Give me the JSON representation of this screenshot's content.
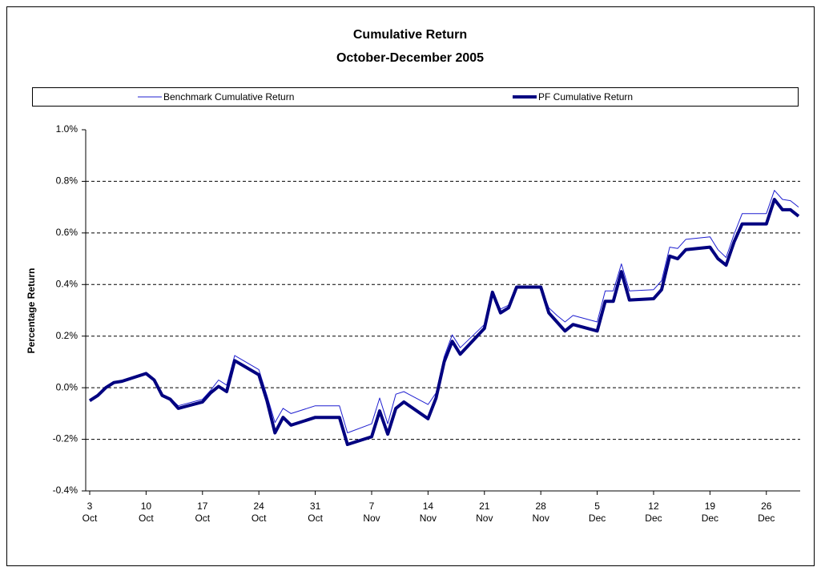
{
  "chart_data": {
    "type": "line",
    "title": "Cumulative Return",
    "subtitle": "October-December 2005",
    "y_label": "Percentage Return",
    "x": [
      "10-03",
      "10-04",
      "10-05",
      "10-06",
      "10-07",
      "10-10",
      "10-11",
      "10-12",
      "10-13",
      "10-14",
      "10-17",
      "10-18",
      "10-19",
      "10-20",
      "10-21",
      "10-24",
      "10-25",
      "10-26",
      "10-27",
      "10-28",
      "10-31",
      "11-01",
      "11-02",
      "11-03",
      "11-04",
      "11-07",
      "11-08",
      "11-09",
      "11-10",
      "11-11",
      "11-14",
      "11-15",
      "11-16",
      "11-17",
      "11-18",
      "11-21",
      "11-22",
      "11-23",
      "11-24",
      "11-25",
      "11-28",
      "11-29",
      "11-30",
      "12-01",
      "12-02",
      "12-05",
      "12-06",
      "12-07",
      "12-08",
      "12-09",
      "12-12",
      "12-13",
      "12-14",
      "12-15",
      "12-16",
      "12-19",
      "12-20",
      "12-21",
      "12-22",
      "12-23",
      "12-26",
      "12-27",
      "12-28",
      "12-29",
      "12-30"
    ],
    "series": [
      {
        "name": "Benchmark Cumulative Return",
        "color": "#1f1fd0",
        "width": 1,
        "values": [
          -0.05,
          -0.03,
          0,
          0.02,
          0.025,
          0.055,
          0.03,
          -0.025,
          -0.04,
          -0.07,
          -0.045,
          -0.01,
          0.03,
          0.01,
          0.125,
          0.07,
          -0.03,
          -0.135,
          -0.08,
          -0.1,
          -0.07,
          -0.07,
          -0.07,
          -0.07,
          -0.175,
          -0.14,
          -0.04,
          -0.14,
          -0.025,
          -0.015,
          -0.065,
          -0.02,
          0.12,
          0.205,
          0.155,
          0.245,
          0.375,
          0.305,
          0.32,
          0.39,
          0.39,
          0.31,
          0.28,
          0.255,
          0.28,
          0.255,
          0.375,
          0.375,
          0.48,
          0.375,
          0.38,
          0.415,
          0.545,
          0.54,
          0.575,
          0.585,
          0.535,
          0.505,
          0.595,
          0.675,
          0.675,
          0.765,
          0.73,
          0.725,
          0.7
        ]
      },
      {
        "name": "PF Cumulative Return",
        "color": "#000080",
        "width": 4,
        "values": [
          -0.05,
          -0.03,
          0,
          0.02,
          0.025,
          0.055,
          0.03,
          -0.03,
          -0.045,
          -0.08,
          -0.055,
          -0.02,
          0.005,
          -0.015,
          0.105,
          0.05,
          -0.05,
          -0.175,
          -0.115,
          -0.145,
          -0.115,
          -0.115,
          -0.115,
          -0.115,
          -0.22,
          -0.19,
          -0.09,
          -0.18,
          -0.08,
          -0.055,
          -0.12,
          -0.04,
          0.1,
          0.18,
          0.13,
          0.23,
          0.37,
          0.29,
          0.31,
          0.39,
          0.39,
          0.29,
          0.255,
          0.22,
          0.245,
          0.22,
          0.335,
          0.335,
          0.45,
          0.34,
          0.345,
          0.38,
          0.51,
          0.5,
          0.535,
          0.545,
          0.5,
          0.475,
          0.565,
          0.635,
          0.635,
          0.73,
          0.69,
          0.69,
          0.665
        ]
      }
    ],
    "xlim": [
      "10-03",
      "12-30"
    ],
    "xticks": [
      {
        "value": "10-03",
        "label": [
          "3",
          "Oct"
        ]
      },
      {
        "value": "10-10",
        "label": [
          "10",
          "Oct"
        ]
      },
      {
        "value": "10-17",
        "label": [
          "17",
          "Oct"
        ]
      },
      {
        "value": "10-24",
        "label": [
          "24",
          "Oct"
        ]
      },
      {
        "value": "10-31",
        "label": [
          "31",
          "Oct"
        ]
      },
      {
        "value": "11-07",
        "label": [
          "7",
          "Nov"
        ]
      },
      {
        "value": "11-14",
        "label": [
          "14",
          "Nov"
        ]
      },
      {
        "value": "11-21",
        "label": [
          "21",
          "Nov"
        ]
      },
      {
        "value": "11-28",
        "label": [
          "28",
          "Nov"
        ]
      },
      {
        "value": "12-05",
        "label": [
          "5",
          "Dec"
        ]
      },
      {
        "value": "12-12",
        "label": [
          "12",
          "Dec"
        ]
      },
      {
        "value": "12-19",
        "label": [
          "19",
          "Dec"
        ]
      },
      {
        "value": "12-26",
        "label": [
          "26",
          "Dec"
        ]
      }
    ],
    "ylim": [
      -0.4,
      1.0
    ],
    "yticks": [
      {
        "value": -0.4,
        "label": "-0.4%"
      },
      {
        "value": -0.2,
        "label": "-0.2%"
      },
      {
        "value": 0.0,
        "label": "0.0%"
      },
      {
        "value": 0.2,
        "label": "0.2%"
      },
      {
        "value": 0.4,
        "label": "0.4%"
      },
      {
        "value": 0.6,
        "label": "0.6%"
      },
      {
        "value": 0.8,
        "label": "0.8%"
      },
      {
        "value": 1.0,
        "label": "1.0%"
      }
    ],
    "grid": true,
    "legend": "top"
  }
}
